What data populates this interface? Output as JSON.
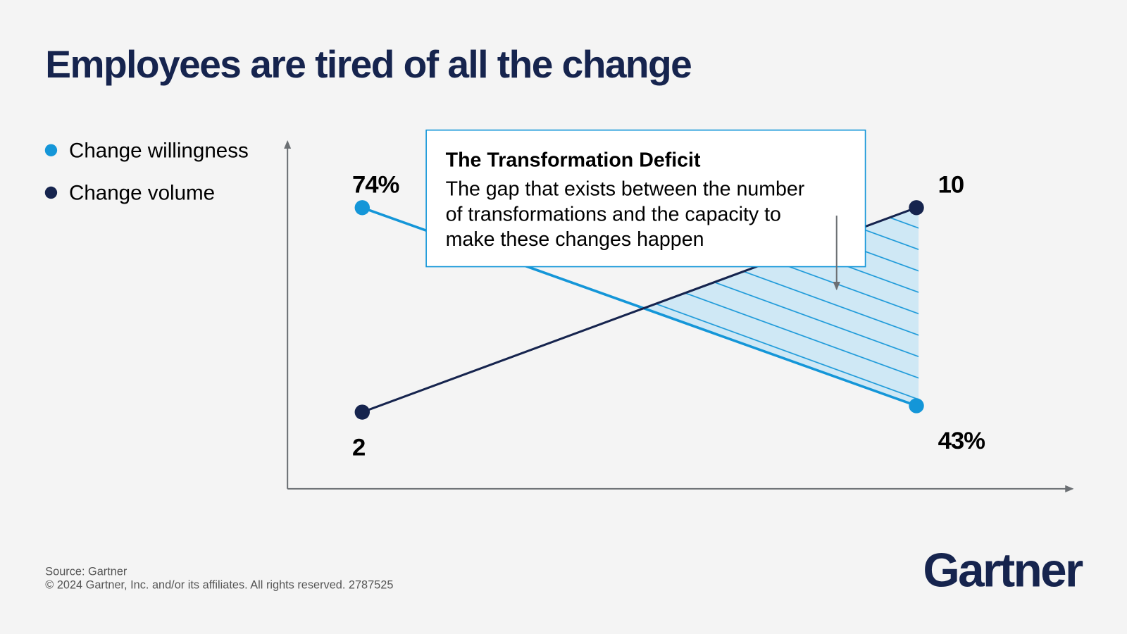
{
  "title": "Employees are tired of all the change",
  "chart_data": {
    "type": "line",
    "categories": [
      null,
      null
    ],
    "series": [
      {
        "name": "Change willingness",
        "color": "#1496d8",
        "values": [
          74,
          43
        ],
        "value_labels": [
          "74%",
          "43%"
        ]
      },
      {
        "name": "Change volume",
        "color": "#16244e",
        "values": [
          2,
          10
        ],
        "axis": "y2"
      }
    ],
    "ylim": [
      30,
      84
    ],
    "y2lim": [
      -1,
      12.5
    ],
    "legend": "top-left",
    "annotation": {
      "title": "The Transformation Deficit",
      "text_lines": [
        "The gap that exists between the number",
        "of transformations and the capacity to",
        "make these changes happen"
      ]
    }
  },
  "source": "Source: Gartner",
  "copyright": "© 2024 Gartner, Inc. and/or its affiliates. All rights reserved. 2787525",
  "logo": "Gartner"
}
